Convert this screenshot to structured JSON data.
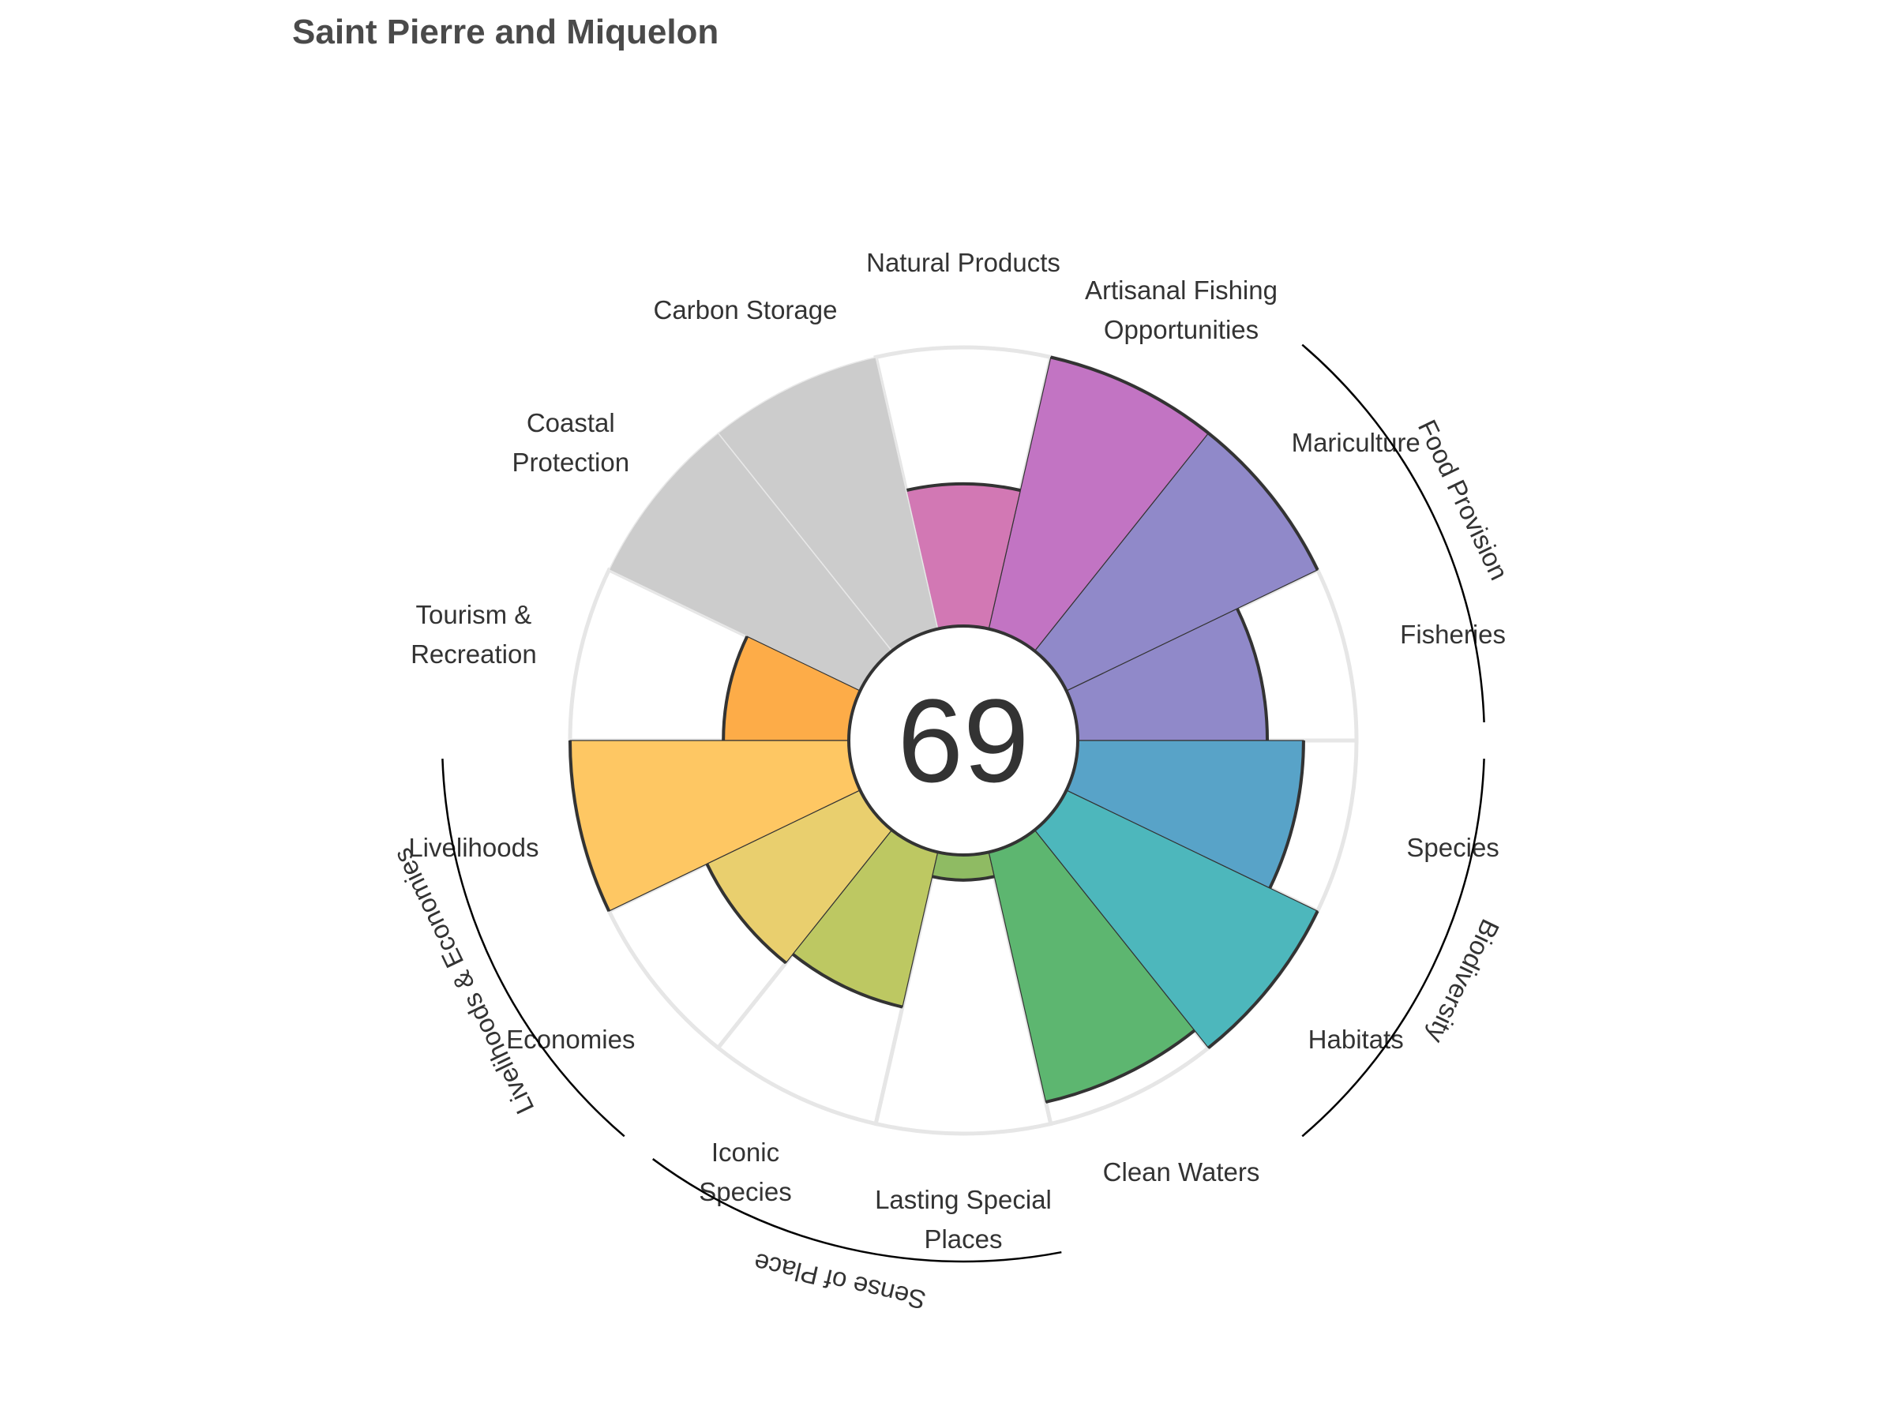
{
  "chart_data": {
    "type": "polar-bar",
    "title": "Saint Pierre and Miquelon",
    "overall_score": "69",
    "rmax": 100,
    "categories": [
      {
        "name": "Fisheries",
        "lines": [
          "Fisheries"
        ],
        "value": 68,
        "color": "#9089c9",
        "missing": false
      },
      {
        "name": "Mariculture",
        "lines": [
          "Mariculture"
        ],
        "value": 100,
        "color": "#9089c9",
        "missing": false
      },
      {
        "name": "Artisanal Fishing Opportunities",
        "lines": [
          "Artisanal Fishing",
          "Opportunities"
        ],
        "value": 100,
        "color": "#c274c3",
        "missing": false
      },
      {
        "name": "Natural Products",
        "lines": [
          "Natural Products"
        ],
        "value": 51,
        "color": "#d278b4",
        "missing": false
      },
      {
        "name": "Carbon Storage",
        "lines": [
          "Carbon Storage"
        ],
        "value": 100,
        "color": "#cccccc",
        "missing": true
      },
      {
        "name": "Coastal Protection",
        "lines": [
          "Coastal",
          "Protection"
        ],
        "value": 100,
        "color": "#cccccc",
        "missing": true
      },
      {
        "name": "Tourism & Recreation",
        "lines": [
          "Tourism &",
          "Recreation"
        ],
        "value": 45,
        "color": "#fdac48",
        "missing": false
      },
      {
        "name": "Livelihoods",
        "lines": [
          "Livelihoods"
        ],
        "value": 100,
        "color": "#fec763",
        "missing": false
      },
      {
        "name": "Economies",
        "lines": [
          "Economies"
        ],
        "value": 61,
        "color": "#e9cf6e",
        "missing": false
      },
      {
        "name": "Iconic Species",
        "lines": [
          "Iconic",
          "Species"
        ],
        "value": 57,
        "color": "#bdc862",
        "missing": false
      },
      {
        "name": "Lasting Special Places",
        "lines": [
          "Lasting Special",
          "Places"
        ],
        "value": 9,
        "color": "#8fbb63",
        "missing": false
      },
      {
        "name": "Clean Waters",
        "lines": [
          "Clean Waters"
        ],
        "value": 92,
        "color": "#5db670",
        "missing": false
      },
      {
        "name": "Habitats",
        "lines": [
          "Habitats"
        ],
        "value": 100,
        "color": "#4db7bc",
        "missing": false
      },
      {
        "name": "Species",
        "lines": [
          "Species"
        ],
        "value": 81,
        "color": "#58a3c8",
        "missing": false
      }
    ],
    "groups": [
      {
        "name": "Food Provision",
        "start": 0,
        "end": 1
      },
      {
        "name": "Biodiversity",
        "start": 12,
        "end": 13
      },
      {
        "name": "Sense of Place",
        "start": 9,
        "end": 10
      },
      {
        "name": "Livelihoods & Economies",
        "start": 7,
        "end": 8
      }
    ]
  }
}
